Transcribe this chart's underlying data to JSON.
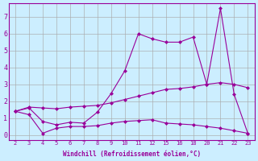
{
  "xlabel": "Windchill (Refroidissement éolien,°C)",
  "background_color": "#cceeff",
  "grid_color": "#aaaaaa",
  "line_color": "#990099",
  "xtick_labels": [
    "2",
    "3",
    "4",
    "5",
    "6",
    "7",
    "8",
    "9",
    "10",
    "11",
    "12",
    "15",
    "16",
    "18",
    "20",
    "21",
    "22",
    "23"
  ],
  "yticks": [
    0,
    1,
    2,
    3,
    4,
    5,
    6,
    7
  ],
  "ylim": [
    -0.3,
    7.8
  ],
  "lines": [
    {
      "y": [
        1.4,
        1.6,
        0.8,
        0.6,
        0.75,
        0.7,
        1.35,
        2.45,
        3.8,
        6.0,
        5.7,
        5.5,
        5.5,
        5.8,
        3.0,
        7.5,
        2.4,
        0.1
      ]
    },
    {
      "y": [
        1.4,
        1.65,
        1.6,
        1.55,
        1.65,
        1.7,
        1.75,
        1.9,
        2.1,
        2.3,
        2.5,
        2.7,
        2.75,
        2.85,
        3.0,
        3.1,
        3.0,
        2.8
      ]
    },
    {
      "y": [
        1.4,
        1.2,
        0.1,
        0.4,
        0.5,
        0.5,
        0.55,
        0.7,
        0.8,
        0.85,
        0.9,
        0.7,
        0.65,
        0.6,
        0.5,
        0.4,
        0.25,
        0.1
      ]
    }
  ]
}
